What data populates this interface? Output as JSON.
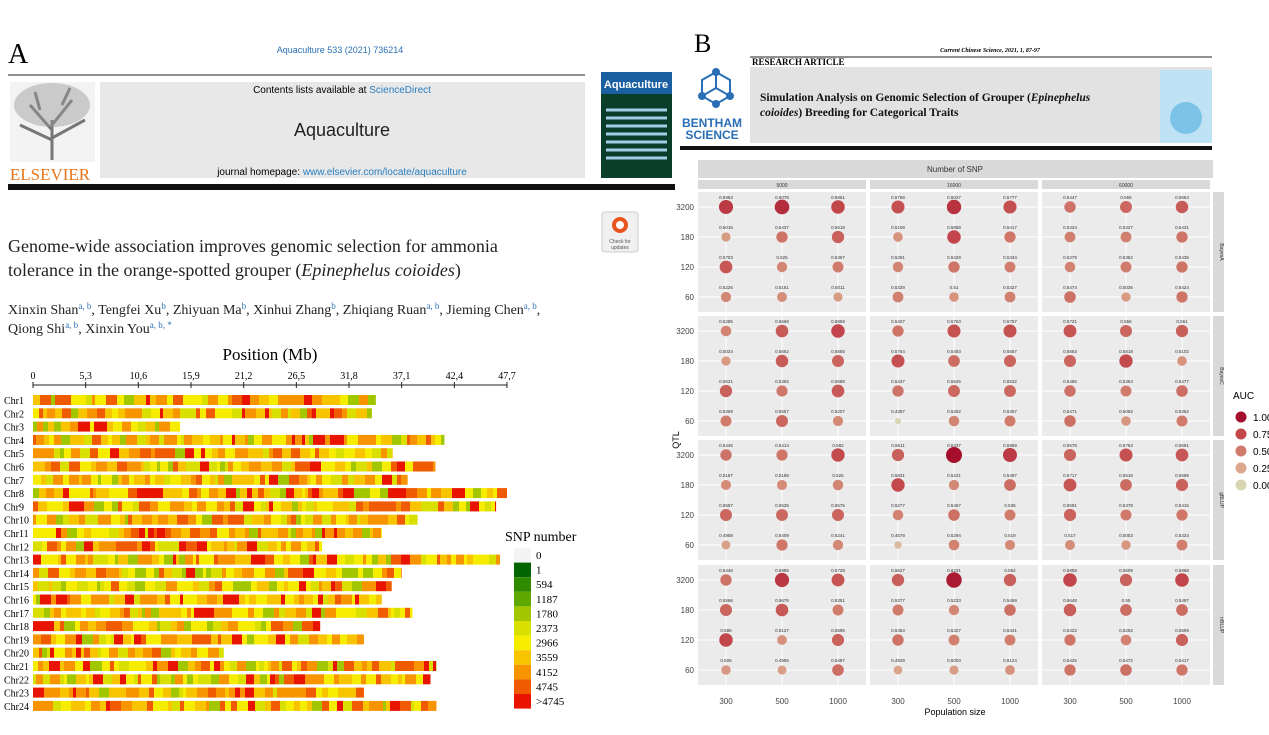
{
  "panel_a": {
    "label": "A",
    "citation": "Aquaculture 533 (2021) 736214",
    "contents": [
      {
        "text": "Contents lists available at "
      },
      {
        "text": "ScienceDirect",
        "link": true
      }
    ],
    "journal": "Aquaculture",
    "homepage": [
      {
        "text": "journal homepage: "
      },
      {
        "text": "www.elsevier.com/locate/aquaculture",
        "link": true
      }
    ],
    "publisher": "ELSEVIER",
    "cover_title": "Aquaculture",
    "badge": [
      "Check for",
      "updates"
    ],
    "title_lines": [
      [
        {
          "text": "Genome-wide association improves genomic selection for ammonia"
        }
      ],
      [
        {
          "text": "tolerance in the orange-spotted grouper ("
        },
        {
          "text": "Epinephelus coioides",
          "italic": true
        },
        {
          "text": ")"
        }
      ]
    ],
    "author_lines": [
      [
        {
          "text": "Xinxin Shan"
        },
        {
          "text": "a, b",
          "sup": true
        },
        {
          "text": ", Tengfei Xu"
        },
        {
          "text": "b",
          "sup": true
        },
        {
          "text": ", Zhiyuan Ma"
        },
        {
          "text": "b",
          "sup": true
        },
        {
          "text": ", Xinhui Zhang"
        },
        {
          "text": "b",
          "sup": true
        },
        {
          "text": ", Zhiqiang Ruan"
        },
        {
          "text": "a, b",
          "sup": true
        },
        {
          "text": ", Jieming Chen"
        },
        {
          "text": "a, b",
          "sup": true
        },
        {
          "text": ","
        }
      ],
      [
        {
          "text": "Qiong Shi"
        },
        {
          "text": "a, b",
          "sup": true
        },
        {
          "text": ", Xinxin You"
        },
        {
          "text": "a, b, *",
          "sup": true
        }
      ]
    ]
  },
  "panel_b": {
    "label": "B",
    "citation": "Current Chinese Science, 2021, 1, 87-97",
    "section": "RESEARCH ARTICLE",
    "publisher": [
      "BENTHAM",
      "SCIENCE"
    ],
    "title_lines": [
      [
        {
          "text": "Simulation Analysis on Genomic Selection of Grouper ("
        },
        {
          "text": "Epinephelus",
          "italic": true
        }
      ],
      [
        {
          "text": "coioides",
          "italic": true
        },
        {
          "text": ") Breeding for Categorical Traits"
        }
      ]
    ]
  },
  "chart_data": [
    {
      "type": "chromosome-density",
      "title": "Position (Mb)",
      "categories": [
        "Chr1",
        "Chr2",
        "Chr3",
        "Chr4",
        "Chr5",
        "Chr6",
        "Chr7",
        "Chr8",
        "Chr9",
        "Chr10",
        "Chr11",
        "Chr12",
        "Chr13",
        "Chr14",
        "Chr15",
        "Chr16",
        "Chr17",
        "Chr18",
        "Chr19",
        "Chr20",
        "Chr21",
        "Chr22",
        "Chr23",
        "Chr24"
      ],
      "values": [
        34.5,
        34.1,
        14.8,
        41.4,
        36.2,
        40.5,
        37.7,
        47.7,
        46.6,
        38.7,
        35.1,
        29.1,
        47.0,
        37.1,
        36.1,
        35.1,
        38.2,
        28.9,
        33.3,
        19.2,
        40.6,
        40.0,
        33.3,
        40.6
      ],
      "xlim": [
        0,
        47.7
      ],
      "xticks": [
        0,
        {
          "value": 5.3,
          "label": "5,3"
        },
        {
          "value": 10.6,
          "label": "10,6"
        },
        {
          "value": 15.9,
          "label": "15,9"
        },
        {
          "value": 21.2,
          "label": "21,2"
        },
        {
          "value": 26.5,
          "label": "26,5"
        },
        {
          "value": 31.8,
          "label": "31,8"
        },
        {
          "value": 37.1,
          "label": "37,1"
        },
        {
          "value": 42.4,
          "label": "42,4"
        },
        {
          "value": 47.7,
          "label": "47,7"
        }
      ],
      "legend_title": "SNP number",
      "legend_labels": [
        "0",
        "1",
        "594",
        "1187",
        "1780",
        "2373",
        "2966",
        "3559",
        "4152",
        "4745",
        ">4745"
      ],
      "legend_colors": [
        "#f4f4f4",
        "#006400",
        "#2f8a00",
        "#5fa800",
        "#a2c600",
        "#d9e000",
        "#f6ec00",
        "#f8c400",
        "#f79400",
        "#f05a00",
        "#e81400"
      ]
    },
    {
      "type": "dot-facet",
      "title": "Number of SNP",
      "facet_cols": [
        "5000",
        "16000",
        "60000"
      ],
      "facet_rows": [
        "BayesA",
        "BayesC",
        "gBLUP",
        "rrBLUP"
      ],
      "categories": [
        "300",
        "500",
        "1000"
      ],
      "y_categories": [
        "3200",
        "180",
        "120",
        "60"
      ],
      "xlabel": "Population size",
      "ylabel": "QTL",
      "legend_title": "AUC",
      "legend": [
        {
          "value": 1,
          "label": "1.00"
        },
        {
          "value": 0.75,
          "label": "0.75"
        },
        {
          "value": 0.5,
          "label": "0.50"
        },
        {
          "value": 0.25,
          "label": "0.25"
        },
        {
          "value": 0,
          "label": "0.00"
        }
      ],
      "legend_colors": [
        "#a50f2d",
        "#c2474b",
        "#d07b6c",
        "#dba88e",
        "#d9d6b2"
      ],
      "values": [
        [
          [
            [
              0.5963,
              0.6078,
              0.5861
            ],
            [
              0.5016,
              0.5437,
              0.5618
            ],
            [
              0.5703,
              0.525,
              0.5367
            ],
            [
              0.5226,
              0.5161,
              0.5011
            ]
          ],
          [
            [
              0.5768,
              0.6027,
              0.5777
            ],
            [
              0.5108,
              0.5858,
              0.5417
            ],
            [
              0.5261,
              0.5429,
              0.5334
            ],
            [
              0.5329,
              0.51,
              0.5327
            ]
          ],
          [
            [
              0.5447,
              0.555,
              0.5664
            ],
            [
              0.5324,
              0.5327,
              0.5431
            ],
            [
              0.5279,
              0.5352,
              0.5435
            ],
            [
              0.5474,
              0.5036,
              0.5424
            ]
          ]
        ],
        [
          [
            [
              0.5285,
              0.5668,
              0.5859
            ],
            [
              0.5034,
              0.5662,
              0.5565
            ],
            [
              0.5621,
              0.5392,
              0.5688
            ],
            [
              0.5369,
              0.5557,
              0.5207
            ]
          ],
          [
            [
              0.5427,
              0.5763,
              0.5757
            ],
            [
              0.5764,
              0.5493,
              0.5567
            ],
            [
              0.5437,
              0.5545,
              0.5532
            ],
            [
              0.4397,
              0.5262,
              0.5367
            ]
          ],
          [
            [
              0.5721,
              0.556,
              0.561
            ],
            [
              0.5563,
              0.5818,
              0.5102
            ],
            [
              0.5456,
              0.5364,
              0.5477
            ],
            [
              0.5471,
              0.5092,
              0.5362
            ]
          ]
        ],
        [
          [
            [
              0.5445,
              0.5414,
              0.582
            ],
            [
              0.5187,
              0.5188,
              0.526
            ],
            [
              0.5557,
              0.5535,
              0.5575
            ],
            [
              0.4958,
              0.5409,
              0.5241
            ]
          ],
          [
            [
              0.5611,
              0.6337,
              0.5959
            ],
            [
              0.5831,
              0.5221,
              0.5497
            ],
            [
              0.5277,
              0.5467,
              0.536
            ],
            [
              0.4678,
              0.5294,
              0.519
            ]
          ],
          [
            [
              0.5578,
              0.5763,
              0.5691
            ],
            [
              0.5717,
              0.5516,
              0.5598
            ],
            [
              0.5591,
              0.5378,
              0.5415
            ],
            [
              0.517,
              0.5053,
              0.5334
            ]
          ]
        ],
        [
          [
            [
              0.5446,
              0.5985,
              0.5728
            ],
            [
              0.5566,
              0.5676,
              0.5351
            ],
            [
              0.586,
              0.5127,
              0.5595
            ],
            [
              0.506,
              0.4985,
              0.5487
            ]
          ],
          [
            [
              0.5627,
              0.6231,
              0.562
            ],
            [
              0.5377,
              0.5233,
              0.5469
            ],
            [
              0.5453,
              0.5327,
              0.5341
            ],
            [
              0.4929,
              0.5003,
              0.5124
            ]
          ],
          [
            [
              0.5858,
              0.5609,
              0.5868
            ],
            [
              0.5648,
              0.55,
              0.5497
            ],
            [
              0.5422,
              0.5292,
              0.5599
            ],
            [
              0.5425,
              0.5472,
              0.5417
            ]
          ]
        ]
      ]
    }
  ]
}
